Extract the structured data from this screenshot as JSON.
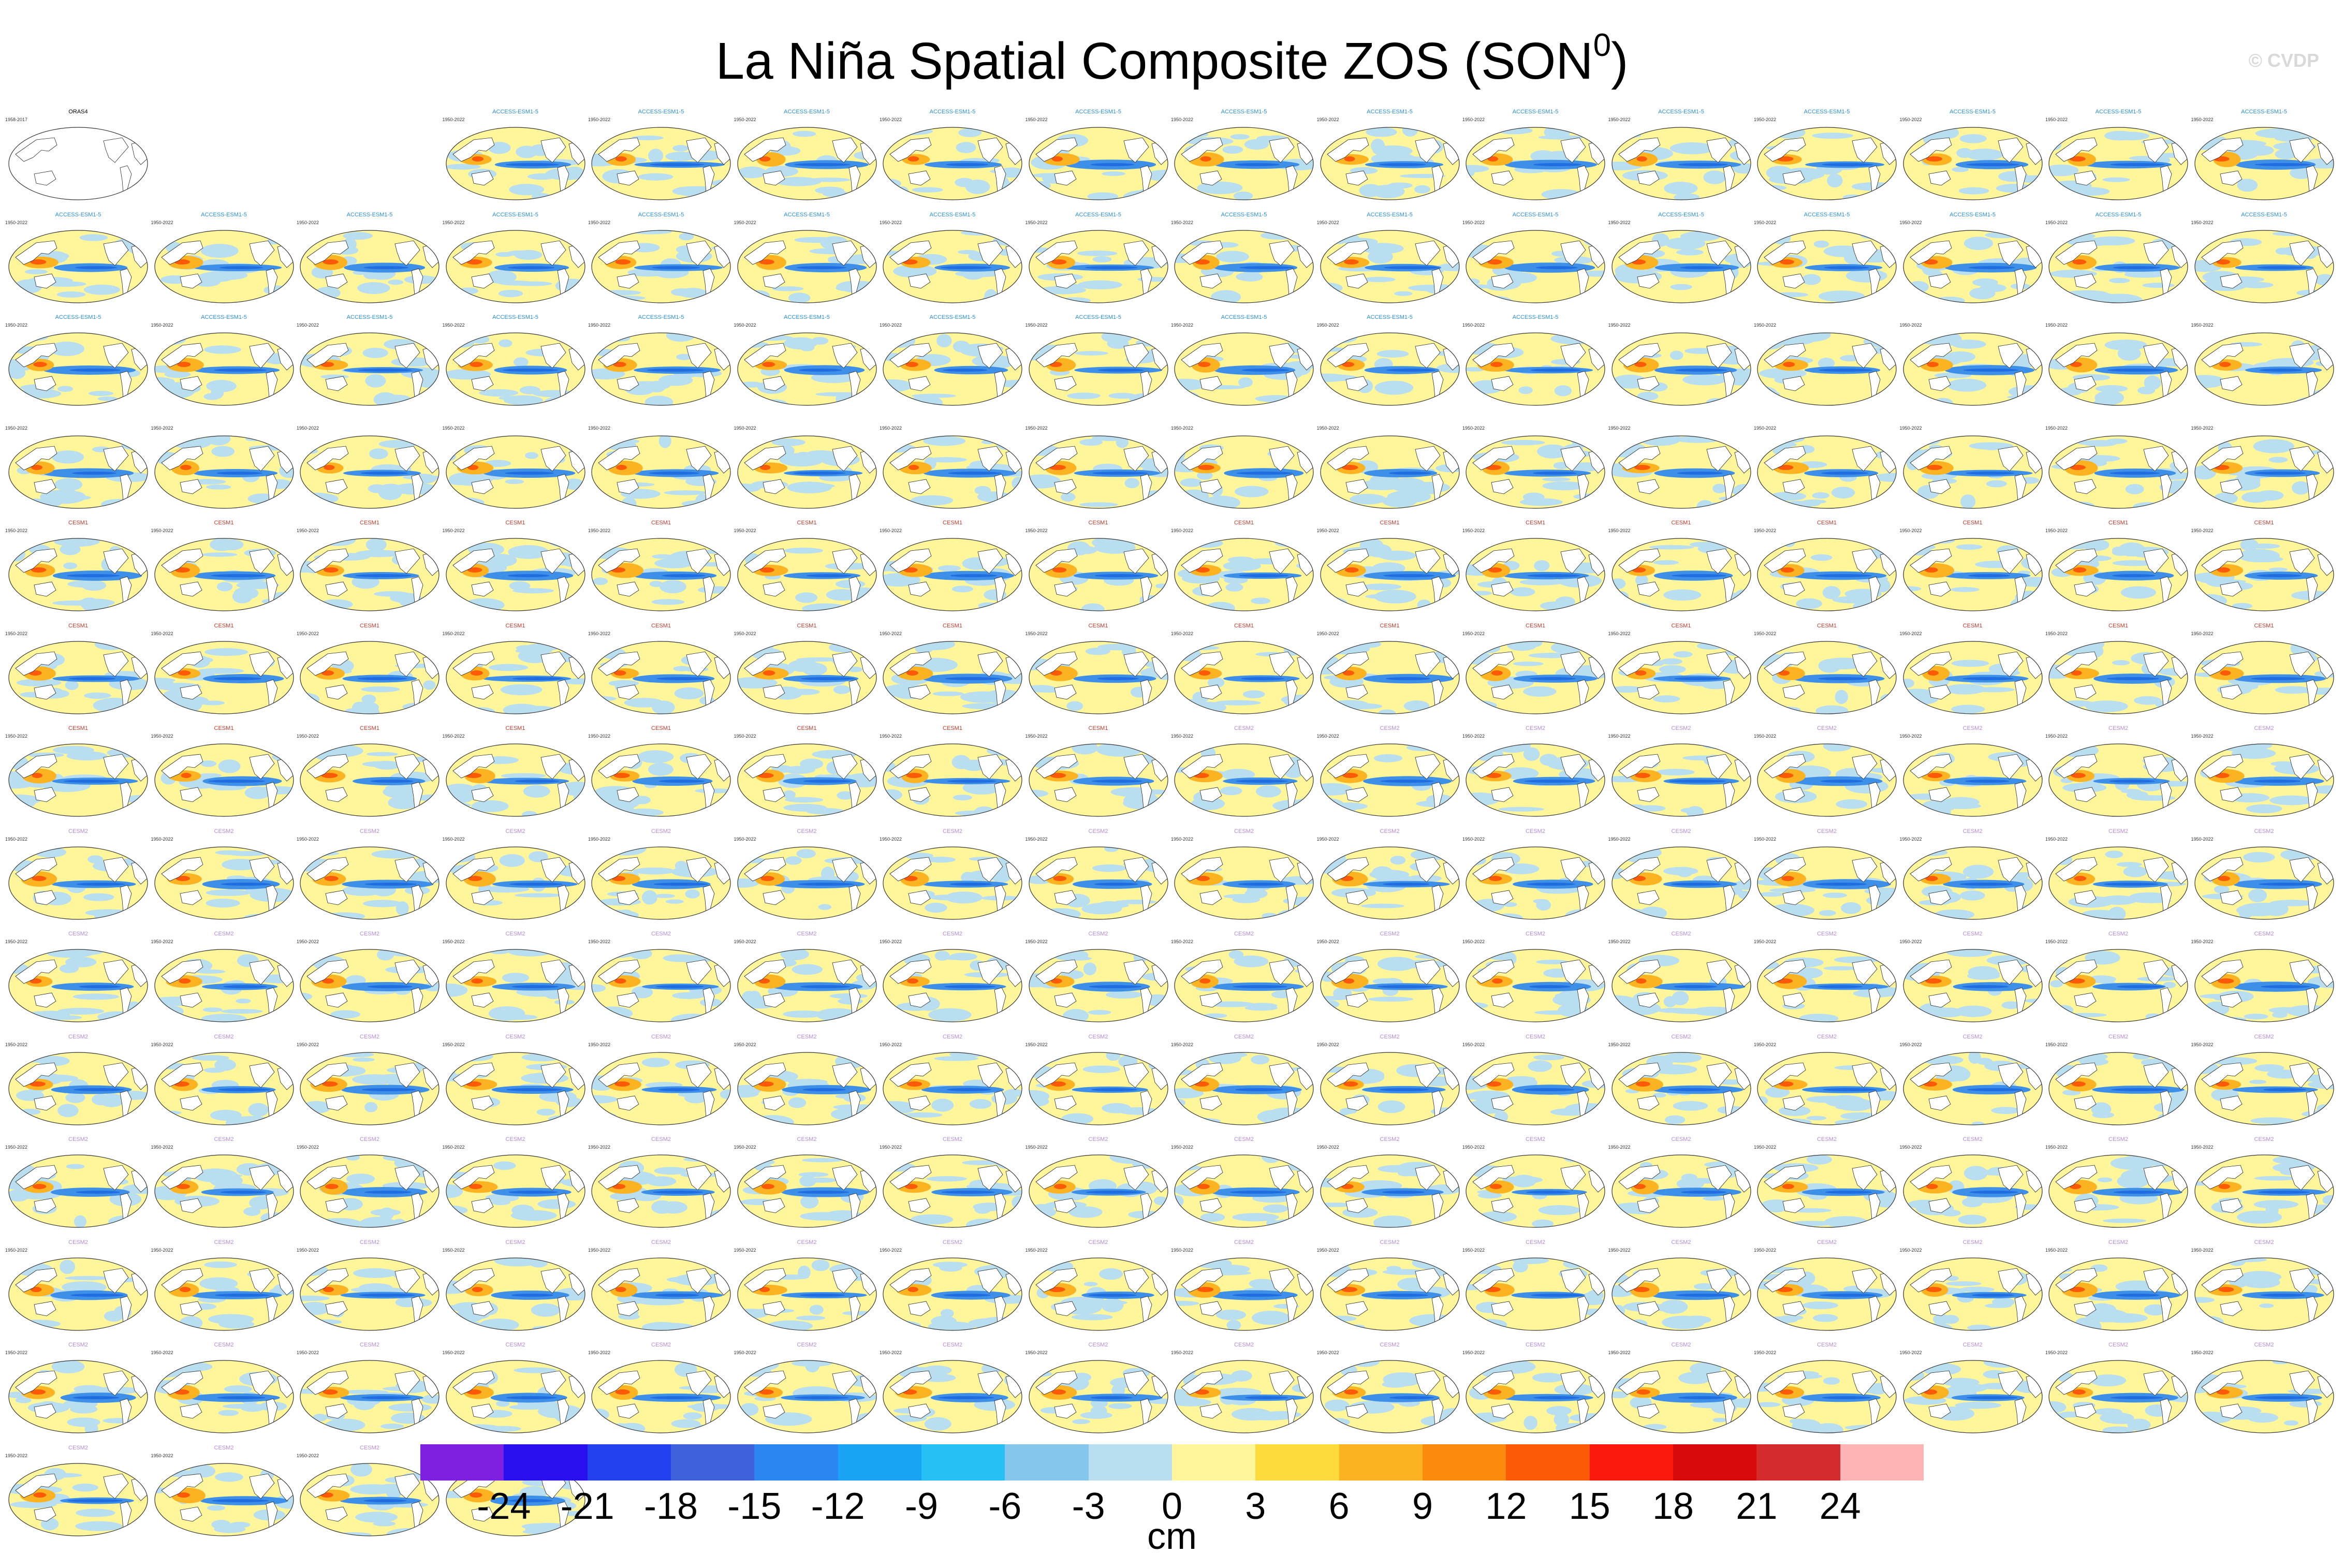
{
  "title": {
    "text": "La Niña Spatial Composite ZOS (SON",
    "superscript": "0",
    "close": ")"
  },
  "watermark": "© CVDP",
  "observation_panel": {
    "label": "ORAS4",
    "years": "1958-2017"
  },
  "ensemble_panels": {
    "count": 209,
    "label_color_groups": [
      {
        "name": "ACCESS-ESM1-5",
        "color": "#2a8fd6",
        "count": 40
      },
      {
        "name": "",
        "color": "#e8c48a",
        "count": 21
      },
      {
        "name": "CESM1",
        "color": "#c0392b",
        "count": 40
      },
      {
        "name": "CESM2",
        "color": "#b48ad8",
        "count": 108
      }
    ],
    "years": "1950-2022"
  },
  "colorbar": {
    "colors": [
      "#7f1fe0",
      "#2a10ee",
      "#2441f0",
      "#3e62dc",
      "#2b86f2",
      "#18a4f2",
      "#26c0f5",
      "#85c7ec",
      "#b8def0",
      "#fff59a",
      "#fddb3b",
      "#fbb321",
      "#fc8a0c",
      "#fc5a06",
      "#f9180b",
      "#d90a0a",
      "#d42c2c",
      "#ffb4b4"
    ],
    "tick_labels": [
      "-24",
      "-21",
      "-18",
      "-15",
      "-12",
      "-9",
      "-6",
      "-3",
      "0",
      "3",
      "6",
      "9",
      "12",
      "15",
      "18",
      "21",
      "24"
    ],
    "units": "cm"
  },
  "map_colors": {
    "ocean_background": "#fff59a",
    "land": "#ffffff",
    "neutral": "#b8def0",
    "negative": "#3e8fe8",
    "negative_deep": "#1f6de0",
    "positive": "#fbb321",
    "positive_strong": "#fc5a06",
    "coast": "#222222"
  }
}
